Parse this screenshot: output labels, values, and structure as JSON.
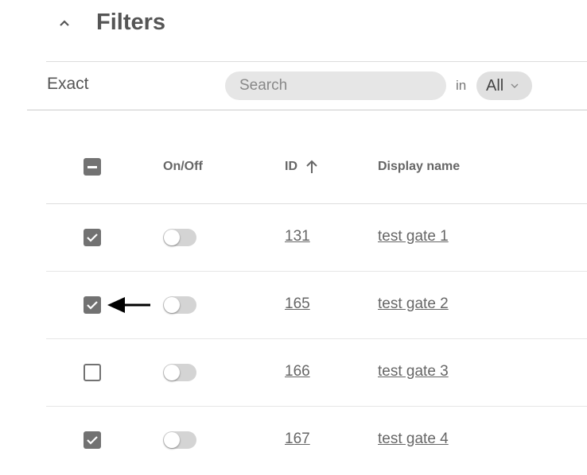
{
  "header": {
    "title": "Filters",
    "collapse_icon": "chevron-up-icon"
  },
  "filter": {
    "mode_label": "Exact",
    "search_placeholder": "Search",
    "search_value": "",
    "in_label": "in",
    "scope_value": "All"
  },
  "table": {
    "columns": {
      "onoff": "On/Off",
      "id": "ID",
      "name": "Display name"
    },
    "sort": {
      "column": "ID",
      "direction": "ascending"
    },
    "select_all_state": "indeterminate",
    "rows": [
      {
        "checked": true,
        "enabled": false,
        "id": "131",
        "name": "test gate 1"
      },
      {
        "checked": true,
        "enabled": false,
        "id": "165",
        "name": "test gate 2",
        "annotation": "arrow-left-icon"
      },
      {
        "checked": false,
        "enabled": false,
        "id": "166",
        "name": "test gate 3"
      },
      {
        "checked": true,
        "enabled": false,
        "id": "167",
        "name": "test gate 4"
      }
    ]
  }
}
